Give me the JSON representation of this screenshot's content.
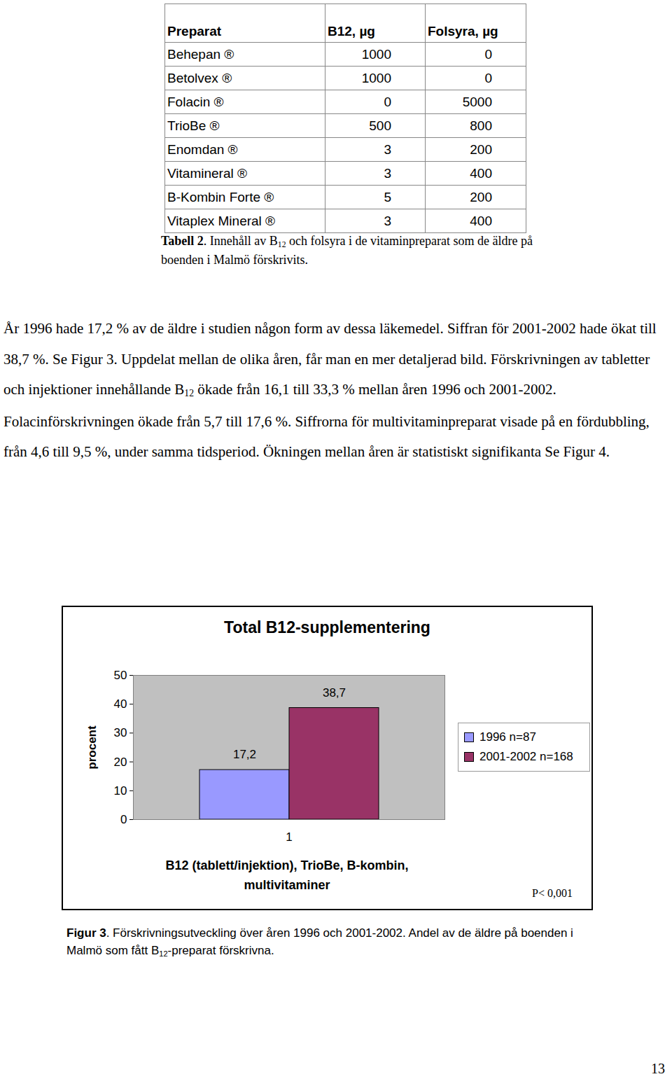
{
  "table": {
    "header": [
      "Preparat",
      "B12, µg",
      "Folsyra, µg"
    ],
    "rows": [
      [
        "Behepan ®",
        1000,
        0
      ],
      [
        "Betolvex ®",
        1000,
        0
      ],
      [
        "Folacin ®",
        0,
        5000
      ],
      [
        "TrioBe ®",
        500,
        800
      ],
      [
        "Enomdan ®",
        3,
        200
      ],
      [
        "Vitamineral ®",
        3,
        400
      ],
      [
        "B-Kombin Forte ®",
        5,
        200
      ],
      [
        "Vitaplex Mineral ®",
        3,
        400
      ]
    ]
  },
  "table_caption": [
    {
      "t": "Tabell 2",
      "b": true
    },
    {
      "t": ". Innehåll av B"
    },
    {
      "t": "12",
      "sub": true
    },
    {
      "t": " och folsyra i de vitaminpreparat som de äldre på boenden i Malmö förskrivits."
    }
  ],
  "paragraph": [
    {
      "t": "År 1996 hade 17,2 % av de äldre i studien någon form av dessa läkemedel. Siffran för 2001-2002 hade ökat till 38,7 %. Se Figur 3. Uppdelat mellan de olika åren, får man en mer detaljerad bild. Förskrivningen av tabletter och injektioner innehållande B"
    },
    {
      "t": "12",
      "sub": true
    },
    {
      "t": " ökade från 16,1 till 33,3 % mellan åren 1996 och 2001-2002. Folacinförskrivningen ökade från 5,7 till 17,6 %. Siffrorna för multivitaminpreparat visade på en fördubbling, från 4,6 till 9,5 %, under samma tidsperiod. Ökningen mellan åren är statistiskt signifikanta Se Figur 4."
    }
  ],
  "chart_data": {
    "type": "bar",
    "title": "Total B12-supplementering",
    "categories": [
      "1"
    ],
    "series": [
      {
        "name": "1996 n=87",
        "color": "#9999ff",
        "values": [
          17.2
        ],
        "value_labels": [
          "17,2"
        ]
      },
      {
        "name": "2001-2002 n=168",
        "color": "#993366",
        "values": [
          38.7
        ],
        "value_labels": [
          "38,7"
        ]
      }
    ],
    "x_label": "B12 (tablett/injektion), TrioBe, B-kombin, multivitaminer",
    "y_label": "procent",
    "ylim": [
      0,
      50
    ],
    "yticks": [
      0,
      10,
      20,
      30,
      40,
      50
    ],
    "data_labels": true,
    "legend": "right",
    "annotations": [
      "P< 0,001"
    ]
  },
  "figure_caption": [
    {
      "t": "Figur 3",
      "b": true
    },
    {
      "t": ". Förskrivningsutveckling över åren 1996 och 2001-2002. Andel av de äldre på boenden i Malmö som fått B"
    },
    {
      "t": "12",
      "sub": true
    },
    {
      "t": "-preparat förskrivna."
    }
  ],
  "page_number": 13
}
